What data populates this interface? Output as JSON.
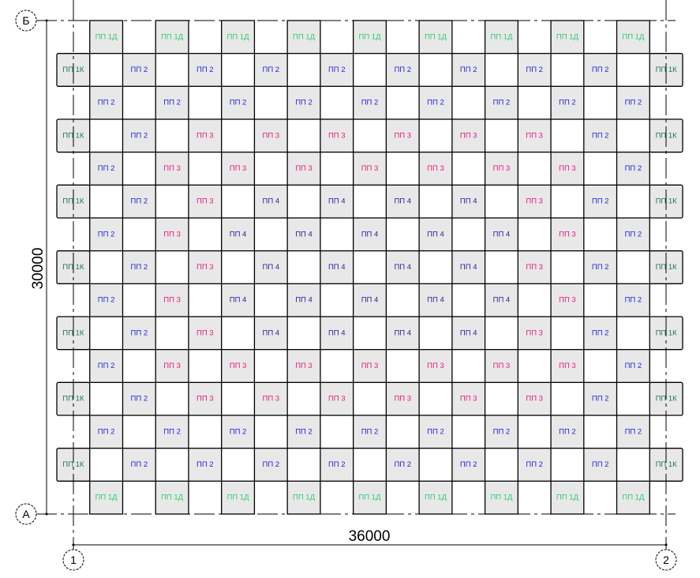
{
  "axes": {
    "rows": [
      "Б",
      "А"
    ],
    "columns": [
      "1",
      "2"
    ]
  },
  "dimensions": {
    "vertical": "30000",
    "horizontal": "36000"
  },
  "panel_types": {
    "1Д": {
      "label": "ПП 1Д",
      "color": "#2ecc71"
    },
    "1К": {
      "label": "ПП 1К",
      "color": "#1e7a4c"
    },
    "2": {
      "label": "ПП 2",
      "color": "#2323e0"
    },
    "3": {
      "label": "ПП 3",
      "color": "#e8197d"
    },
    "4": {
      "label": "ПП 4",
      "color": "#24249a"
    }
  },
  "layout": {
    "columns": 19,
    "rows": [
      [
        "1Д",
        "1Д",
        "1Д",
        "1Д",
        "1Д",
        "1Д",
        "1Д",
        "1Д",
        "1Д"
      ],
      [
        "1К",
        "2",
        "2",
        "2",
        "2",
        "2",
        "2",
        "2",
        "2",
        "1К"
      ],
      [
        "2",
        "2",
        "2",
        "2",
        "2",
        "2",
        "2",
        "2",
        "2"
      ],
      [
        "1К",
        "2",
        "3",
        "3",
        "3",
        "3",
        "3",
        "3",
        "2",
        "1К"
      ],
      [
        "2",
        "3",
        "3",
        "3",
        "3",
        "3",
        "3",
        "3",
        "2"
      ],
      [
        "1К",
        "2",
        "3",
        "4",
        "4",
        "4",
        "4",
        "3",
        "2",
        "1К"
      ],
      [
        "2",
        "3",
        "4",
        "4",
        "4",
        "4",
        "4",
        "3",
        "2"
      ],
      [
        "1К",
        "2",
        "3",
        "4",
        "4",
        "4",
        "4",
        "3",
        "2",
        "1К"
      ],
      [
        "2",
        "3",
        "4",
        "4",
        "4",
        "4",
        "4",
        "3",
        "2"
      ],
      [
        "1К",
        "2",
        "3",
        "4",
        "4",
        "4",
        "4",
        "3",
        "2",
        "1К"
      ],
      [
        "2",
        "3",
        "3",
        "3",
        "3",
        "3",
        "3",
        "3",
        "2"
      ],
      [
        "1К",
        "2",
        "3",
        "3",
        "3",
        "3",
        "3",
        "3",
        "2",
        "1К"
      ],
      [
        "2",
        "2",
        "2",
        "2",
        "2",
        "2",
        "2",
        "2",
        "2"
      ],
      [
        "1К",
        "2",
        "2",
        "2",
        "2",
        "2",
        "2",
        "2",
        "2",
        "1К"
      ],
      [
        "1Д",
        "1Д",
        "1Д",
        "1Д",
        "1Д",
        "1Д",
        "1Д",
        "1Д",
        "1Д"
      ]
    ]
  }
}
